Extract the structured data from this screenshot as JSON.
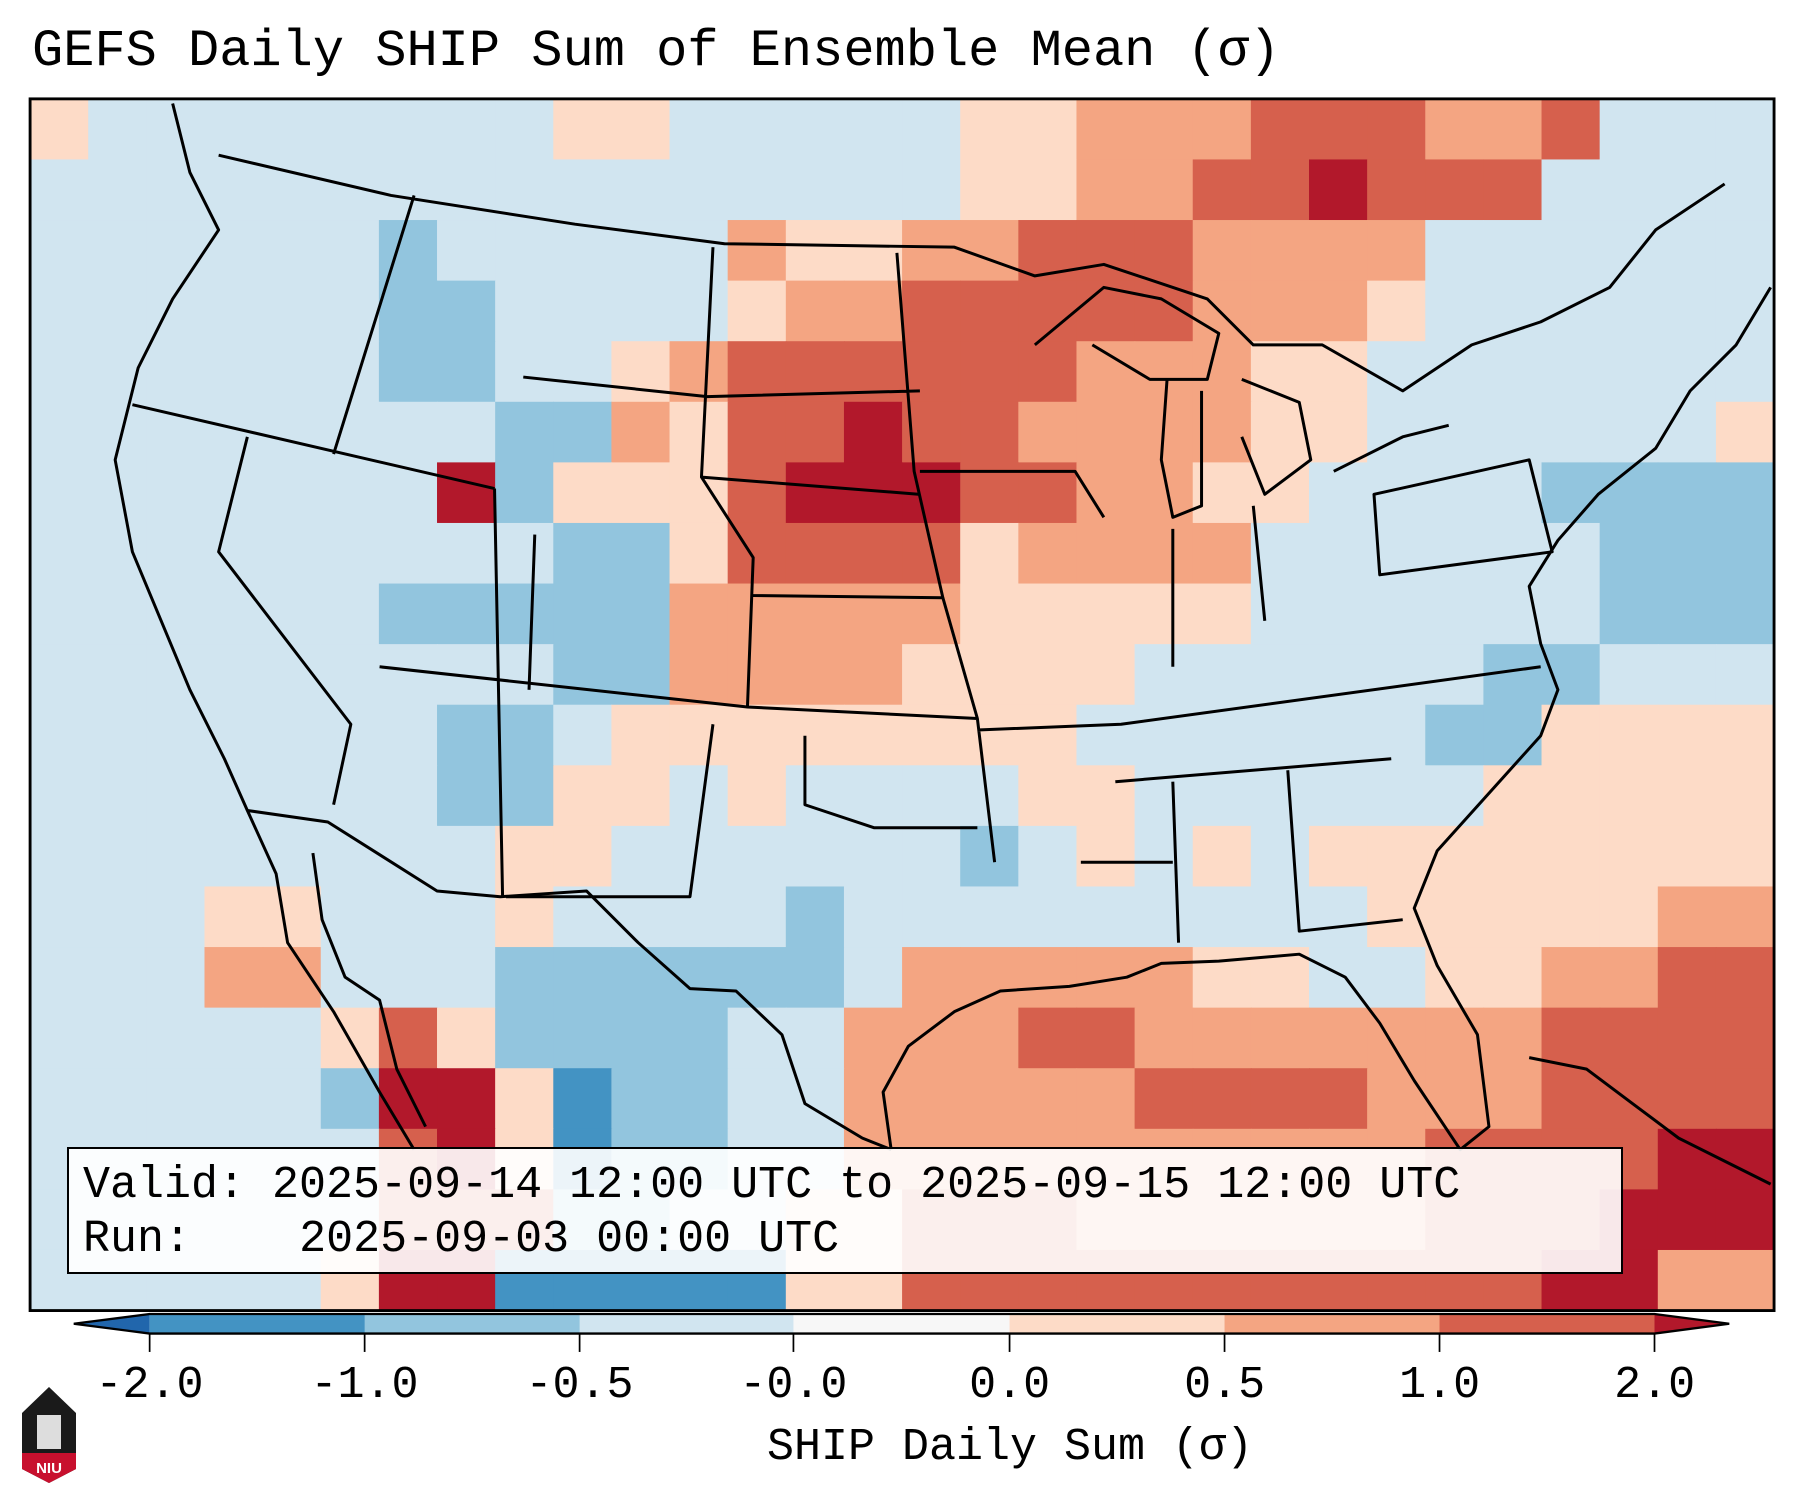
{
  "title": "GEFS Daily SHIP Sum of Ensemble Mean (σ)",
  "legend": {
    "valid_label": "Valid:",
    "valid_value": "2025-09-14 12:00 UTC to 2025-09-15 12:00 UTC",
    "run_label": "Run:",
    "run_value": "2025-09-03 00:00 UTC"
  },
  "colorbar": {
    "label": "SHIP Daily Sum (σ)",
    "ticks": [
      "-2.0",
      "-1.0",
      "-0.5",
      "-0.0",
      "0.0",
      "0.5",
      "1.0",
      "2.0"
    ],
    "under_color": "#2166ac",
    "over_color": "#b2182b",
    "bin_colors": [
      "#4393c3",
      "#92c5de",
      "#d1e5f0",
      "#f7f7f7",
      "#fddbc7",
      "#f4a582",
      "#d6604d"
    ]
  },
  "logo": {
    "text": "NIU"
  },
  "field": {
    "legend_codes": {
      "A": "#2166ac",
      "a": "#4393c3",
      "b": "#92c5de",
      "c": "#d1e5f0",
      "w": "#f7f7f7",
      "d": "#fddbc7",
      "e": "#f4a582",
      "f": "#d6604d",
      "g": "#b2182b"
    },
    "rows": [
      "dccccccccddcccccddeeefffeefccc",
      "ccccccccccccccccddeeffgfffcccc",
      "ccccccbccccceddeefffeeeecccccc",
      "ccccccbbccccdeefffffeeedcccccc",
      "ccccccbbccdeffffffeeeddccccccc",
      "ccccccccbbedffgffeeeeddccccccd",
      "cccccccgbdddfgggffeeddccccbbbb",
      "cccccccccbbdffffdeeeeccccccbbb",
      "ccccccbbbbbeeeeedddddccccccbbb",
      "cccccccccbbeeeeddddccccccbbccc",
      "cccccccbbcddddddddccccccbbdddd",
      "cccccccbbddcdccccddccccccddddd",
      "ccccccccddccccccbcdcdcdddddddd",
      "cccddcccdccccbcccccccccdddddee",
      "ccceecccbbbbbbceeeeeddccddeeff",
      "cccccdfdbbbbcceeeffeeeeeeeffff",
      "cccccbggdabbcceeeeeffffeeeffff",
      "ccccccfgdabbcceeeeeeeeeeffffgg",
      "ccccccfffbbccddfffeeeeeefffggg",
      "cccccdggaaaaaddfffffffffffggee"
    ]
  }
}
